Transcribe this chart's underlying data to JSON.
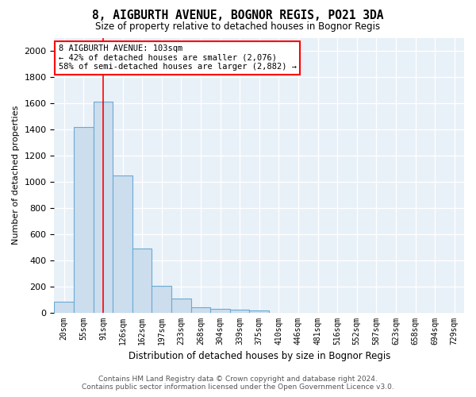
{
  "title": "8, AIGBURTH AVENUE, BOGNOR REGIS, PO21 3DA",
  "subtitle": "Size of property relative to detached houses in Bognor Regis",
  "xlabel": "Distribution of detached houses by size in Bognor Regis",
  "ylabel": "Number of detached properties",
  "bar_color": "#ccdded",
  "bar_edge_color": "#6aaad4",
  "background_color": "#e8f0f8",
  "grid_color": "#ffffff",
  "bin_labels": [
    "20sqm",
    "55sqm",
    "91sqm",
    "126sqm",
    "162sqm",
    "197sqm",
    "233sqm",
    "268sqm",
    "304sqm",
    "339sqm",
    "375sqm",
    "410sqm",
    "446sqm",
    "481sqm",
    "516sqm",
    "552sqm",
    "587sqm",
    "623sqm",
    "658sqm",
    "694sqm",
    "729sqm"
  ],
  "bar_heights": [
    80,
    1420,
    1610,
    1050,
    490,
    205,
    105,
    40,
    25,
    20,
    15,
    0,
    0,
    0,
    0,
    0,
    0,
    0,
    0,
    0,
    0
  ],
  "red_line_x": 2.0,
  "ylim": [
    0,
    2100
  ],
  "yticks": [
    0,
    200,
    400,
    600,
    800,
    1000,
    1200,
    1400,
    1600,
    1800,
    2000
  ],
  "annotation_line1": "8 AIGBURTH AVENUE: 103sqm",
  "annotation_line2": "← 42% of detached houses are smaller (2,076)",
  "annotation_line3": "58% of semi-detached houses are larger (2,882) →",
  "footer_line1": "Contains HM Land Registry data © Crown copyright and database right 2024.",
  "footer_line2": "Contains public sector information licensed under the Open Government Licence v3.0."
}
